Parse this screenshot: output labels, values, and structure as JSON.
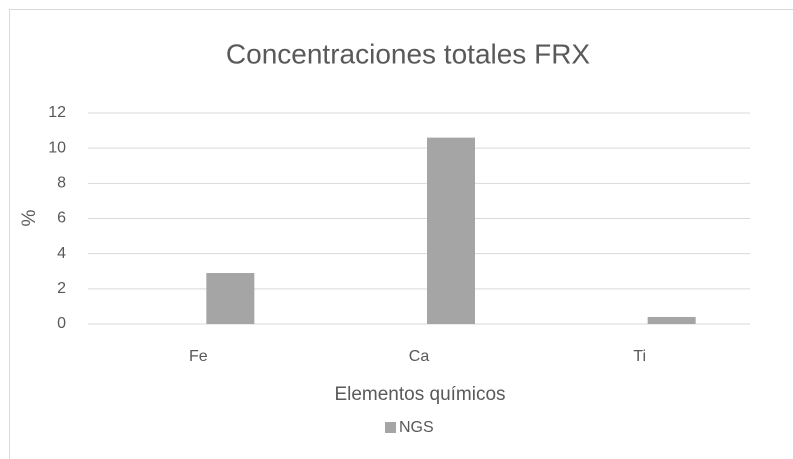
{
  "chart_data": {
    "type": "bar",
    "title": "Concentraciones totales FRX",
    "x_label": "Elementos químicos",
    "y_label": "%",
    "categories": [
      "Fe",
      "Ca",
      "Ti"
    ],
    "series": [
      {
        "name": "NGS",
        "color": "#a5a5a5",
        "values": [
          2.9,
          10.6,
          0.4
        ]
      }
    ],
    "ylim": [
      0,
      12
    ],
    "yticks": [
      0,
      2,
      4,
      6,
      8,
      10,
      12
    ],
    "grid": true,
    "legend": "bottom"
  }
}
